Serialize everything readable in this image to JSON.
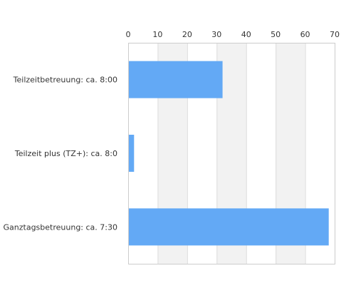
{
  "chart_data": {
    "type": "bar",
    "orientation": "horizontal",
    "categories": [
      "Teilzeitbetreuung: ca. 8:00",
      "Teilzeit plus (TZ+): ca. 8:0",
      "Ganztagsbetreuung: ca. 7:30"
    ],
    "values": [
      32,
      2,
      68
    ],
    "xlim": [
      0,
      70
    ],
    "ticks": [
      0,
      10,
      20,
      30,
      40,
      50,
      60,
      70
    ],
    "tick_labels": [
      "0",
      "10",
      "20",
      "30",
      "40",
      "50",
      "60",
      "70"
    ],
    "x_axis_position": "top",
    "grid": true,
    "alternating_bands": true,
    "title": "",
    "xlabel": "",
    "ylabel": "",
    "colors": {
      "bar": "#63a9f5",
      "band": "#f2f2f2",
      "gridline": "#dddddd",
      "frame": "#cccccc",
      "text": "#333333"
    }
  }
}
